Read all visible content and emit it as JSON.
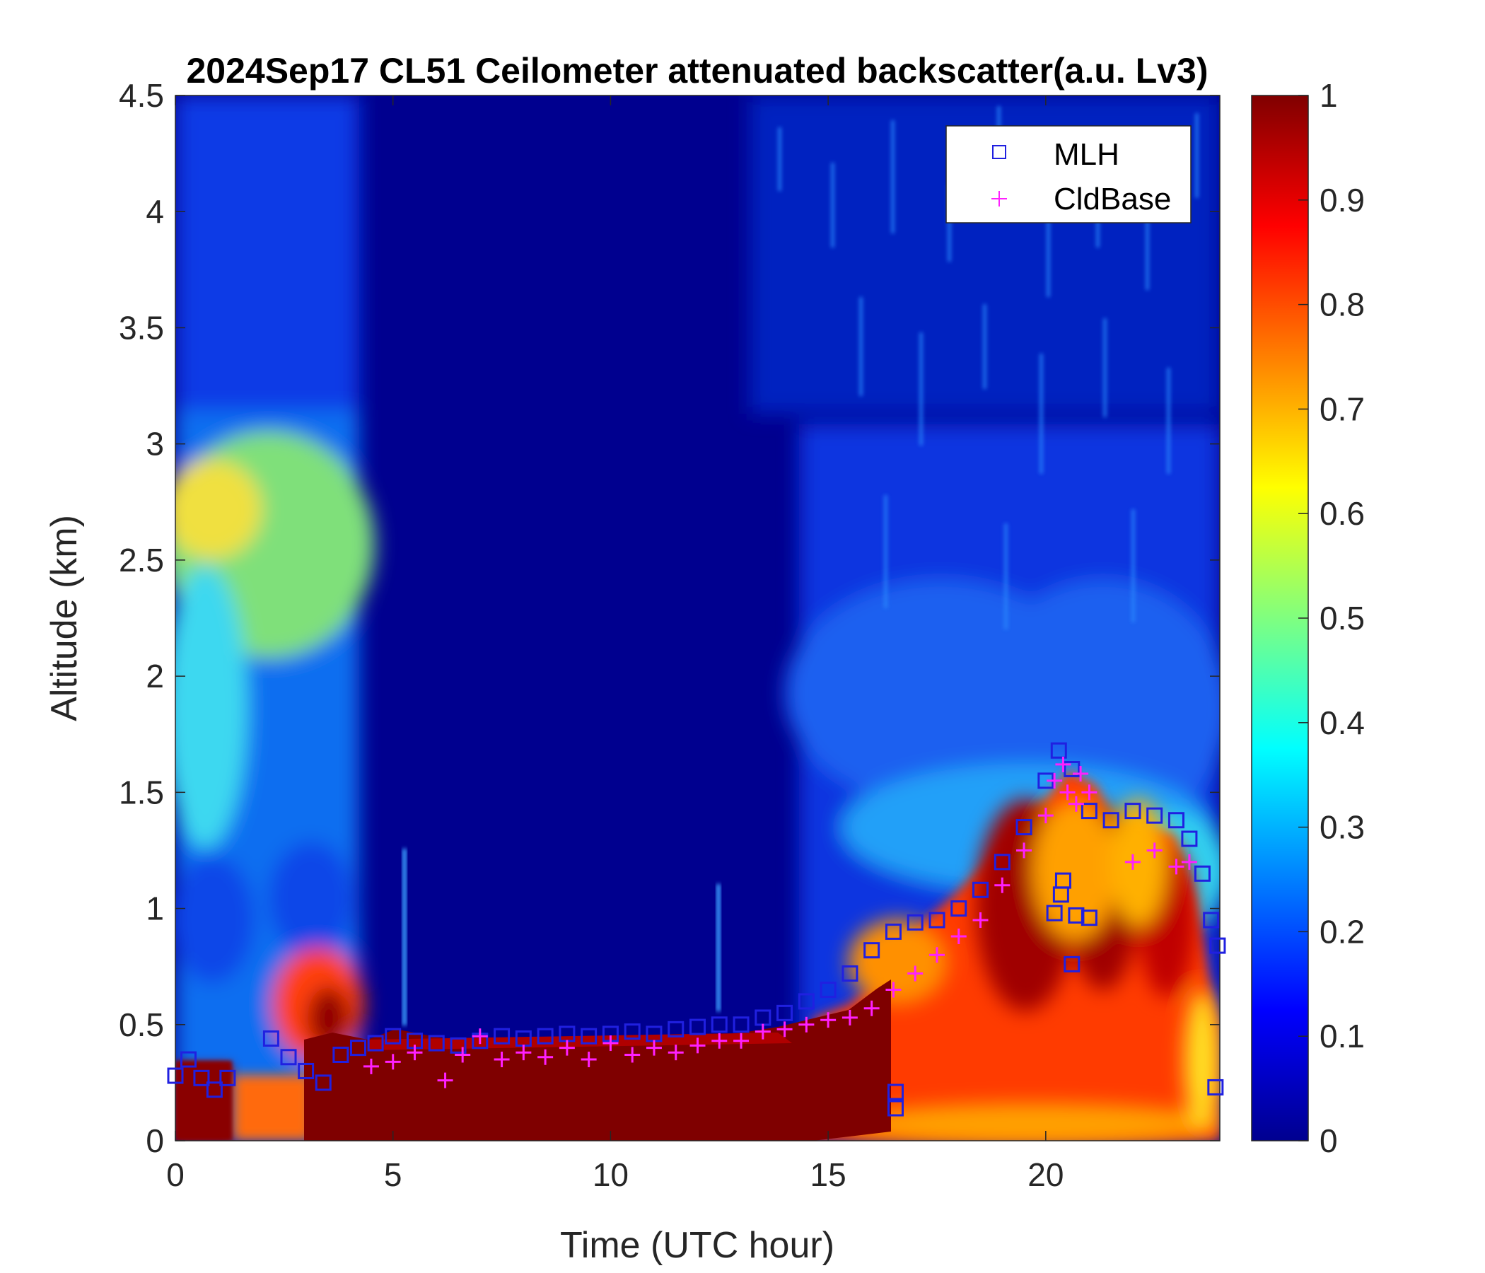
{
  "chart_data": {
    "type": "heatmap",
    "title": "2024Sep17 CL51 Ceilometer attenuated backscatter(a.u. Lv3)",
    "xlabel": "Time (UTC hour)",
    "ylabel": "Altitude (km)",
    "xlim": [
      0,
      24
    ],
    "ylim": [
      0,
      4.5
    ],
    "xticks": [
      "0",
      "5",
      "10",
      "15",
      "20"
    ],
    "xtick_values": [
      0,
      5,
      10,
      15,
      20
    ],
    "yticks": [
      "0",
      "0.5",
      "1",
      "1.5",
      "2",
      "2.5",
      "3",
      "3.5",
      "4",
      "4.5"
    ],
    "ytick_values": [
      0,
      0.5,
      1,
      1.5,
      2,
      2.5,
      3,
      3.5,
      4,
      4.5
    ],
    "colorbar": {
      "colormap": "jet",
      "range": [
        0,
        1
      ],
      "ticks": [
        "0",
        "0.1",
        "0.2",
        "0.3",
        "0.4",
        "0.5",
        "0.6",
        "0.7",
        "0.8",
        "0.9",
        "1"
      ],
      "tick_values": [
        0,
        0.1,
        0.2,
        0.3,
        0.4,
        0.5,
        0.6,
        0.7,
        0.8,
        0.9,
        1
      ]
    },
    "legend": {
      "placement": "top-right",
      "entries": [
        {
          "label": "MLH",
          "marker": "square",
          "color": "#2020e0"
        },
        {
          "label": "CldBase",
          "marker": "plus",
          "color": "#ff20ff"
        }
      ]
    },
    "series": [
      {
        "name": "MLH",
        "marker": "square",
        "color": "#2020e0",
        "x": [
          0,
          0.3,
          0.6,
          0.9,
          1.2,
          2.2,
          2.6,
          3.0,
          3.4,
          3.8,
          4.2,
          4.6,
          5.0,
          5.5,
          6.0,
          6.5,
          7.0,
          7.5,
          8.0,
          8.5,
          9.0,
          9.5,
          10.0,
          10.5,
          11.0,
          11.5,
          12.0,
          12.5,
          13.0,
          13.5,
          14.0,
          14.5,
          15.0,
          15.5,
          16.0,
          16.5,
          17.0,
          17.5,
          18.0,
          18.5,
          19.0,
          19.5,
          20.0,
          20.3,
          20.6,
          21.0,
          21.5,
          22.0,
          22.5,
          23.0,
          23.3,
          23.6,
          23.8,
          23.95,
          16.55,
          16.55,
          20.2,
          20.4,
          20.7,
          21.0,
          20.6,
          20.35,
          23.9
        ],
        "y": [
          0.28,
          0.35,
          0.27,
          0.22,
          0.27,
          0.44,
          0.36,
          0.3,
          0.25,
          0.37,
          0.4,
          0.42,
          0.45,
          0.43,
          0.42,
          0.41,
          0.43,
          0.45,
          0.44,
          0.45,
          0.46,
          0.45,
          0.46,
          0.47,
          0.46,
          0.48,
          0.49,
          0.5,
          0.5,
          0.53,
          0.55,
          0.6,
          0.65,
          0.72,
          0.82,
          0.9,
          0.94,
          0.95,
          1.0,
          1.08,
          1.2,
          1.35,
          1.55,
          1.68,
          1.6,
          1.42,
          1.38,
          1.42,
          1.4,
          1.38,
          1.3,
          1.15,
          0.95,
          0.84,
          0.21,
          0.14,
          0.98,
          1.12,
          0.97,
          0.96,
          0.76,
          1.06,
          0.23
        ]
      },
      {
        "name": "CldBase",
        "marker": "plus",
        "color": "#ff20ff",
        "x": [
          4.5,
          5.0,
          5.5,
          6.2,
          6.6,
          7.0,
          7.5,
          8.0,
          8.5,
          9.0,
          9.5,
          10.0,
          10.5,
          11.0,
          11.5,
          12.0,
          12.5,
          13.0,
          13.5,
          14.0,
          14.5,
          15.0,
          15.5,
          16.0,
          16.5,
          17.0,
          17.5,
          18.0,
          18.5,
          19.0,
          19.5,
          20.0,
          20.2,
          20.4,
          20.5,
          20.7,
          20.8,
          21.0,
          22.0,
          22.5,
          23.0,
          23.3
        ],
        "y": [
          0.32,
          0.34,
          0.38,
          0.26,
          0.37,
          0.45,
          0.35,
          0.38,
          0.36,
          0.4,
          0.35,
          0.42,
          0.37,
          0.4,
          0.38,
          0.41,
          0.43,
          0.43,
          0.47,
          0.48,
          0.5,
          0.52,
          0.53,
          0.57,
          0.65,
          0.72,
          0.8,
          0.88,
          0.95,
          1.1,
          1.25,
          1.4,
          1.55,
          1.62,
          1.5,
          1.45,
          1.58,
          1.5,
          1.2,
          1.25,
          1.18,
          1.2
        ]
      }
    ]
  }
}
